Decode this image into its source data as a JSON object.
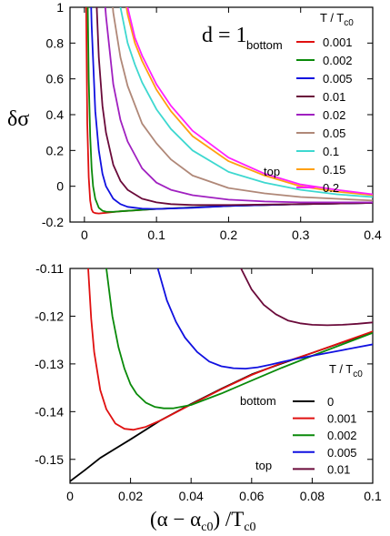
{
  "chart_data": [
    {
      "type": "line",
      "panel": "top",
      "annotation": "d = 1",
      "annotation_color": "#1414e0",
      "ylabel": "δσ",
      "xlabel": "",
      "xlim": [
        -0.02,
        0.4
      ],
      "ylim": [
        -0.2,
        1.0
      ],
      "xticks": [
        "0",
        "0.1",
        "0.2",
        "0.3",
        "0.4"
      ],
      "xtick_values": [
        0,
        0.1,
        0.2,
        0.3,
        0.4
      ],
      "yticks": [
        "-0.2",
        "0",
        "0.2",
        "0.4",
        "0.6",
        "0.8",
        "1"
      ],
      "ytick_values": [
        -0.2,
        0,
        0.2,
        0.4,
        0.6,
        0.8,
        1.0
      ],
      "legend_title": "T / T",
      "legend_title_sub": "c0",
      "legend_position": "top-right",
      "legend_bottom_label": "bottom",
      "legend_top_label": "top",
      "series": [
        {
          "name": "0.001",
          "color": "#e01010",
          "x": [
            0.002,
            0.004,
            0.006,
            0.008,
            0.01,
            0.012,
            0.015,
            0.02,
            0.03,
            0.05,
            0.1,
            0.2,
            0.3,
            0.4
          ],
          "y": [
            1.2,
            0.35,
            0.05,
            -0.08,
            -0.13,
            -0.145,
            -0.15,
            -0.152,
            -0.148,
            -0.14,
            -0.127,
            -0.11,
            -0.1,
            -0.093
          ]
        },
        {
          "name": "0.002",
          "color": "#0a8a0a",
          "x": [
            0.004,
            0.006,
            0.008,
            0.01,
            0.012,
            0.015,
            0.02,
            0.025,
            0.03,
            0.04,
            0.05,
            0.1,
            0.2,
            0.3,
            0.4
          ],
          "y": [
            1.2,
            0.6,
            0.28,
            0.1,
            0.0,
            -0.07,
            -0.12,
            -0.137,
            -0.142,
            -0.143,
            -0.14,
            -0.127,
            -0.11,
            -0.1,
            -0.093
          ]
        },
        {
          "name": "0.005",
          "color": "#1010e0",
          "x": [
            0.008,
            0.01,
            0.015,
            0.02,
            0.025,
            0.03,
            0.04,
            0.05,
            0.06,
            0.08,
            0.1,
            0.15,
            0.2,
            0.3,
            0.4
          ],
          "y": [
            1.2,
            0.9,
            0.42,
            0.2,
            0.07,
            0.0,
            -0.07,
            -0.1,
            -0.115,
            -0.125,
            -0.127,
            -0.12,
            -0.11,
            -0.1,
            -0.093
          ]
        },
        {
          "name": "0.01",
          "color": "#6a0a3a",
          "x": [
            0.015,
            0.02,
            0.025,
            0.03,
            0.04,
            0.05,
            0.06,
            0.08,
            0.1,
            0.12,
            0.15,
            0.2,
            0.3,
            0.4
          ],
          "y": [
            1.2,
            0.72,
            0.45,
            0.3,
            0.12,
            0.03,
            -0.02,
            -0.07,
            -0.09,
            -0.1,
            -0.105,
            -0.105,
            -0.1,
            -0.093
          ]
        },
        {
          "name": "0.02",
          "color": "#a020c0",
          "x": [
            0.025,
            0.03,
            0.04,
            0.05,
            0.06,
            0.08,
            0.1,
            0.12,
            0.15,
            0.2,
            0.25,
            0.3,
            0.4
          ],
          "y": [
            1.2,
            0.95,
            0.57,
            0.37,
            0.25,
            0.1,
            0.02,
            -0.02,
            -0.05,
            -0.075,
            -0.085,
            -0.09,
            -0.09
          ]
        },
        {
          "name": "0.05",
          "color": "#b08878",
          "x": [
            0.035,
            0.04,
            0.05,
            0.06,
            0.08,
            0.1,
            0.12,
            0.15,
            0.2,
            0.25,
            0.3,
            0.4
          ],
          "y": [
            1.2,
            0.97,
            0.72,
            0.56,
            0.35,
            0.24,
            0.15,
            0.06,
            -0.01,
            -0.04,
            -0.06,
            -0.08
          ]
        },
        {
          "name": "0.1",
          "color": "#3ed8d0",
          "x": [
            0.045,
            0.05,
            0.06,
            0.07,
            0.08,
            0.1,
            0.12,
            0.15,
            0.2,
            0.25,
            0.3,
            0.35,
            0.4
          ],
          "y": [
            1.2,
            1.0,
            0.8,
            0.68,
            0.58,
            0.43,
            0.32,
            0.2,
            0.08,
            0.02,
            -0.02,
            -0.045,
            -0.06
          ]
        },
        {
          "name": "0.15",
          "color": "#ffa010",
          "x": [
            0.05,
            0.06,
            0.07,
            0.08,
            0.1,
            0.12,
            0.15,
            0.2,
            0.25,
            0.3,
            0.35,
            0.4
          ],
          "y": [
            1.2,
            0.96,
            0.8,
            0.7,
            0.54,
            0.42,
            0.28,
            0.14,
            0.06,
            0.0,
            -0.03,
            -0.05
          ]
        },
        {
          "name": "0.2",
          "color": "#ff20ff",
          "x": [
            0.052,
            0.06,
            0.07,
            0.08,
            0.1,
            0.12,
            0.15,
            0.2,
            0.25,
            0.3,
            0.35,
            0.4
          ],
          "y": [
            1.2,
            1.0,
            0.83,
            0.73,
            0.57,
            0.45,
            0.31,
            0.16,
            0.07,
            0.01,
            -0.02,
            -0.045
          ]
        }
      ]
    },
    {
      "type": "line",
      "panel": "bottom",
      "xlabel": "(α − α",
      "xlabel_sub1": "c0",
      "xlabel_mid": ") /T",
      "xlabel_sub2": "c0",
      "ylabel": "",
      "xlim": [
        0,
        0.1
      ],
      "ylim": [
        -0.155,
        -0.11
      ],
      "xticks": [
        "0",
        "0.02",
        "0.04",
        "0.06",
        "0.08",
        "0.1"
      ],
      "xtick_values": [
        0,
        0.02,
        0.04,
        0.06,
        0.08,
        0.1
      ],
      "yticks": [
        "-0.15",
        "-0.14",
        "-0.13",
        "-0.12",
        "-0.11"
      ],
      "ytick_values": [
        -0.15,
        -0.14,
        -0.13,
        -0.12,
        -0.11
      ],
      "legend_title": "T / T",
      "legend_title_sub": "c0",
      "legend_position": "bottom-right",
      "legend_bottom_label": "bottom",
      "legend_top_label": "top",
      "series": [
        {
          "name": "0",
          "color": "#000000",
          "x": [
            0,
            0.005,
            0.01,
            0.02,
            0.03,
            0.04,
            0.05,
            0.06,
            0.07,
            0.08,
            0.09,
            0.1
          ],
          "y": [
            -0.1546,
            -0.1522,
            -0.1497,
            -0.1458,
            -0.1418,
            -0.1384,
            -0.1352,
            -0.1322,
            -0.1299,
            -0.1277,
            -0.1255,
            -0.1233
          ]
        },
        {
          "name": "0.001",
          "color": "#e01010",
          "x": [
            0.006,
            0.007,
            0.008,
            0.01,
            0.012,
            0.015,
            0.018,
            0.021,
            0.025,
            0.03,
            0.04,
            0.05,
            0.06,
            0.07,
            0.08,
            0.1
          ],
          "y": [
            -0.11,
            -0.1205,
            -0.1275,
            -0.1355,
            -0.1395,
            -0.1425,
            -0.1436,
            -0.1438,
            -0.1432,
            -0.1418,
            -0.1385,
            -0.1353,
            -0.1323,
            -0.1298,
            -0.1277,
            -0.1232
          ]
        },
        {
          "name": "0.002",
          "color": "#0a8a0a",
          "x": [
            0.012,
            0.014,
            0.016,
            0.018,
            0.02,
            0.022,
            0.025,
            0.028,
            0.031,
            0.034,
            0.04,
            0.05,
            0.06,
            0.07,
            0.08,
            0.1
          ],
          "y": [
            -0.11,
            -0.12,
            -0.1265,
            -0.131,
            -0.1343,
            -0.1363,
            -0.1381,
            -0.139,
            -0.1393,
            -0.1393,
            -0.1386,
            -0.1362,
            -0.1335,
            -0.1308,
            -0.1283,
            -0.1235
          ]
        },
        {
          "name": "0.005",
          "color": "#1010e0",
          "x": [
            0.029,
            0.032,
            0.035,
            0.038,
            0.042,
            0.046,
            0.05,
            0.054,
            0.058,
            0.062,
            0.066,
            0.07,
            0.075,
            0.08,
            0.09,
            0.1
          ],
          "y": [
            -0.11,
            -0.1167,
            -0.1212,
            -0.1245,
            -0.1275,
            -0.1295,
            -0.1305,
            -0.1309,
            -0.131,
            -0.1307,
            -0.1302,
            -0.1296,
            -0.1289,
            -0.1283,
            -0.1271,
            -0.1259
          ]
        },
        {
          "name": "0.01",
          "color": "#6a0a3a",
          "x": [
            0.0565,
            0.06,
            0.064,
            0.068,
            0.072,
            0.076,
            0.08,
            0.085,
            0.09,
            0.095,
            0.1
          ],
          "y": [
            -0.11,
            -0.1144,
            -0.1176,
            -0.1196,
            -0.1209,
            -0.1215,
            -0.1218,
            -0.1219,
            -0.1218,
            -0.1216,
            -0.1213
          ]
        }
      ]
    }
  ]
}
